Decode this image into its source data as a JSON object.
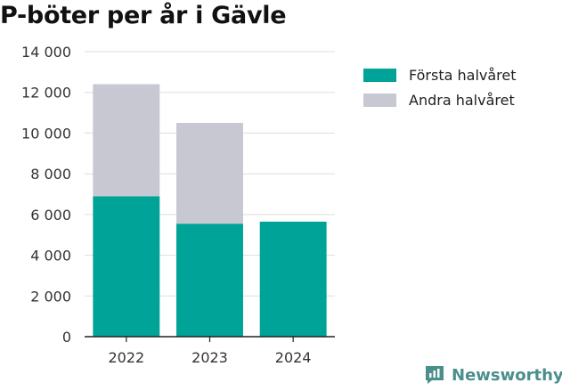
{
  "title": "P-böter per år i Gävle",
  "brand": {
    "name": "Newsworthy",
    "icon": "newsworthy-logo-icon",
    "color": "#4a8f8c"
  },
  "chart_data": {
    "type": "bar",
    "stacked": true,
    "title": "P-böter per år i Gävle",
    "xlabel": "",
    "ylabel": "",
    "categories": [
      "2022",
      "2023",
      "2024"
    ],
    "series": [
      {
        "name": "Första halvåret",
        "color": "#00a398",
        "values": [
          6900,
          5550,
          5650
        ]
      },
      {
        "name": "Andra halvåret",
        "color": "#c8c8d2",
        "values": [
          5500,
          4950,
          0
        ]
      }
    ],
    "ylim": [
      0,
      14000
    ],
    "yticks": [
      0,
      2000,
      4000,
      6000,
      8000,
      10000,
      12000,
      14000
    ],
    "ytick_labels": [
      "0",
      "2 000",
      "4 000",
      "6 000",
      "8 000",
      "10 000",
      "12 000",
      "14 000"
    ],
    "grid": true,
    "legend_position": "top-right"
  }
}
